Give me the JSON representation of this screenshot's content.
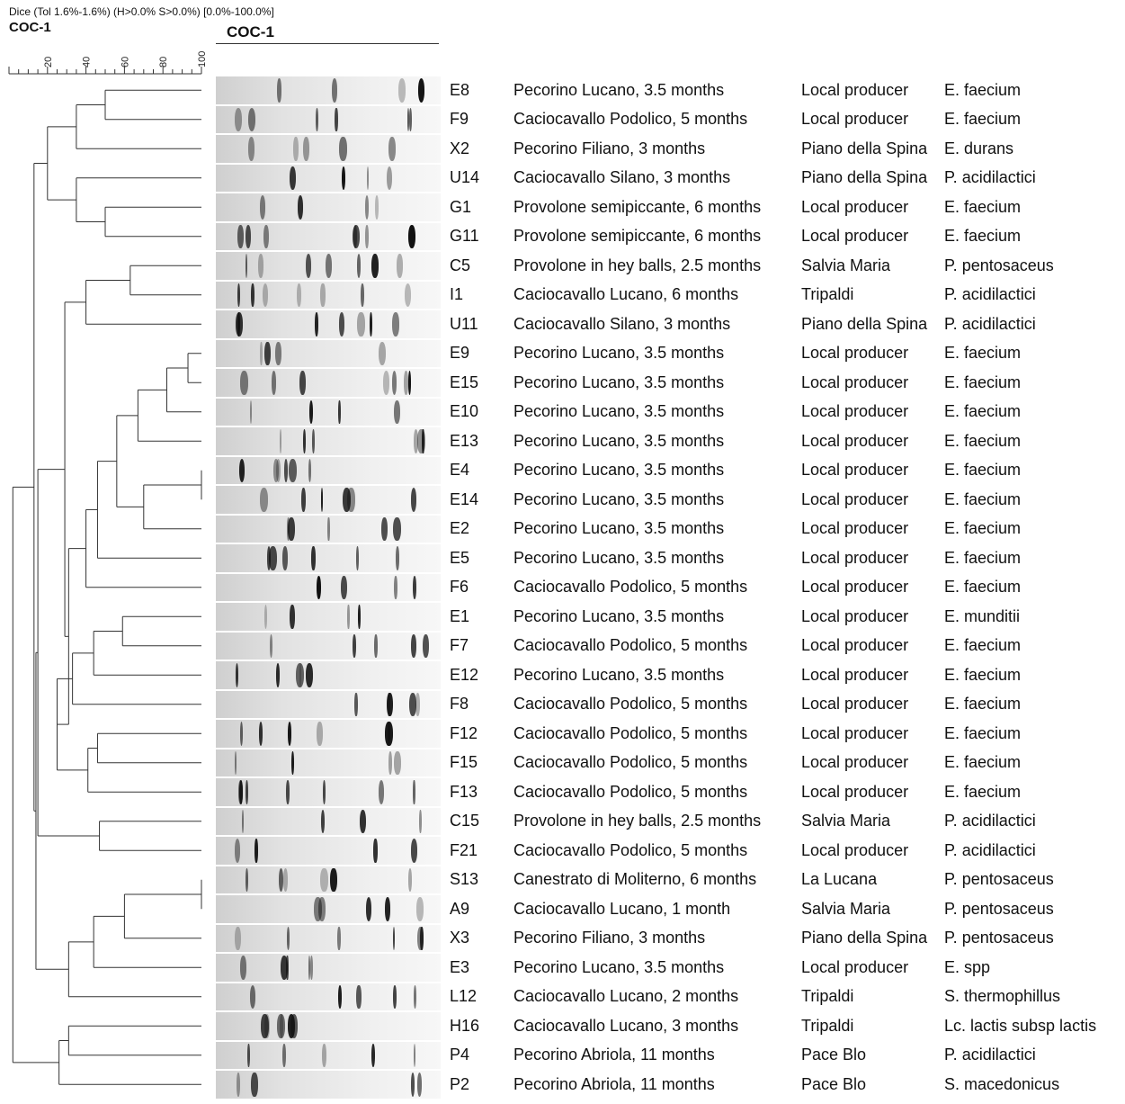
{
  "header": {
    "params": "Dice (Tol 1.6%-1.6%) (H>0.0% S>0.0%) [0.0%-100.0%]",
    "title": "COC-1",
    "gel_title": "COC-1"
  },
  "scale": {
    "min": 0,
    "max": 100,
    "ticks": [
      "20",
      "40",
      "60",
      "80",
      "100"
    ]
  },
  "isolates": [
    {
      "code": "E8",
      "cheese": "Pecorino Lucano, 3.5 months",
      "producer": "Local producer",
      "species": "E. faecium"
    },
    {
      "code": "F9",
      "cheese": "Caciocavallo Podolico, 5 months",
      "producer": "Local producer",
      "species": "E. faecium"
    },
    {
      "code": "X2",
      "cheese": "Pecorino Filiano, 3 months",
      "producer": "Piano della Spina",
      "species": "E. durans"
    },
    {
      "code": "U14",
      "cheese": "Caciocavallo Silano, 3 months",
      "producer": "Piano della Spina",
      "species": "P. acidilactici"
    },
    {
      "code": "G1",
      "cheese": "Provolone semipiccante, 6 months",
      "producer": "Local producer",
      "species": "E. faecium"
    },
    {
      "code": "G11",
      "cheese": "Provolone semipiccante, 6 months",
      "producer": "Local producer",
      "species": "E. faecium"
    },
    {
      "code": "C5",
      "cheese": "Provolone in hey balls, 2.5 months",
      "producer": "Salvia Maria",
      "species": "P. pentosaceus"
    },
    {
      "code": "I1",
      "cheese": "Caciocavallo Lucano, 6 months",
      "producer": "Tripaldi",
      "species": "P. acidilactici"
    },
    {
      "code": "U11",
      "cheese": "Caciocavallo Silano, 3 months",
      "producer": "Piano della Spina",
      "species": "P. acidilactici"
    },
    {
      "code": "E9",
      "cheese": "Pecorino Lucano, 3.5 months",
      "producer": "Local producer",
      "species": "E. faecium"
    },
    {
      "code": "E15",
      "cheese": "Pecorino Lucano, 3.5 months",
      "producer": "Local producer",
      "species": "E. faecium"
    },
    {
      "code": "E10",
      "cheese": "Pecorino Lucano, 3.5 months",
      "producer": "Local producer",
      "species": "E. faecium"
    },
    {
      "code": "E13",
      "cheese": "Pecorino Lucano, 3.5 months",
      "producer": "Local producer",
      "species": "E. faecium"
    },
    {
      "code": "E4",
      "cheese": "Pecorino Lucano, 3.5 months",
      "producer": "Local producer",
      "species": "E. faecium"
    },
    {
      "code": "E14",
      "cheese": "Pecorino Lucano, 3.5 months",
      "producer": "Local producer",
      "species": "E. faecium"
    },
    {
      "code": "E2",
      "cheese": "Pecorino Lucano, 3.5 months",
      "producer": "Local producer",
      "species": "E. faecium"
    },
    {
      "code": "E5",
      "cheese": "Pecorino Lucano, 3.5 months",
      "producer": "Local producer",
      "species": "E. faecium"
    },
    {
      "code": "F6",
      "cheese": "Caciocavallo Podolico, 5 months",
      "producer": "Local producer",
      "species": "E. faecium"
    },
    {
      "code": "E1",
      "cheese": "Pecorino Lucano, 3.5 months",
      "producer": "Local producer",
      "species": "E. munditii"
    },
    {
      "code": "F7",
      "cheese": "Caciocavallo Podolico, 5 months",
      "producer": "Local producer",
      "species": "E. faecium"
    },
    {
      "code": "E12",
      "cheese": "Pecorino Lucano, 3.5 months",
      "producer": "Local producer",
      "species": "E. faecium"
    },
    {
      "code": "F8",
      "cheese": "Caciocavallo Podolico, 5 months",
      "producer": "Local producer",
      "species": "E. faecium"
    },
    {
      "code": "F12",
      "cheese": "Caciocavallo Podolico, 5 months",
      "producer": "Local producer",
      "species": "E. faecium"
    },
    {
      "code": "F15",
      "cheese": "Caciocavallo Podolico, 5 months",
      "producer": "Local producer",
      "species": "E. faecium"
    },
    {
      "code": "F13",
      "cheese": "Caciocavallo Podolico, 5 months",
      "producer": "Local producer",
      "species": "E. faecium"
    },
    {
      "code": "C15",
      "cheese": "Provolone in hey balls, 2.5 months",
      "producer": "Salvia Maria",
      "species": "P. acidilactici"
    },
    {
      "code": "F21",
      "cheese": "Caciocavallo Podolico, 5 months",
      "producer": "Local producer",
      "species": "P. acidilactici"
    },
    {
      "code": "S13",
      "cheese": "Canestrato di Moliterno, 6 months",
      "producer": "La Lucana",
      "species": "P. pentosaceus"
    },
    {
      "code": "A9",
      "cheese": "Caciocavallo Lucano, 1 month",
      "producer": "Salvia Maria",
      "species": "P. pentosaceus"
    },
    {
      "code": "X3",
      "cheese": "Pecorino Filiano, 3 months",
      "producer": "Piano della Spina",
      "species": "P. pentosaceus"
    },
    {
      "code": "E3",
      "cheese": "Pecorino Lucano, 3.5 months",
      "producer": "Local producer",
      "species": "E. spp"
    },
    {
      "code": "L12",
      "cheese": "Caciocavallo Lucano, 2 months",
      "producer": "Tripaldi",
      "species": "S. thermophillus"
    },
    {
      "code": "H16",
      "cheese": "Caciocavallo Lucano, 3 months",
      "producer": "Tripaldi",
      "species": "Lc. lactis subsp lactis"
    },
    {
      "code": "P4",
      "cheese": "Pecorino Abriola, 11 months",
      "producer": "Pace Blo",
      "species": "P. acidilactici"
    },
    {
      "code": "P2",
      "cheese": "Pecorino Abriola, 11 months",
      "producer": "Pace Blo",
      "species": "S. macedonicus"
    }
  ],
  "dendrogram": {
    "merges": [
      {
        "a": "E8",
        "b": "F9",
        "similarity": 50
      },
      {
        "a": "n0",
        "b": "X2",
        "similarity": 35
      },
      {
        "a": "G1",
        "b": "G11",
        "similarity": 50
      },
      {
        "a": "U14",
        "b": "n2",
        "similarity": 35
      },
      {
        "a": "n1",
        "b": "n3",
        "similarity": 20
      },
      {
        "a": "C5",
        "b": "I1",
        "similarity": 63
      },
      {
        "a": "n5",
        "b": "U11",
        "similarity": 40
      },
      {
        "a": "E9",
        "b": "E15",
        "similarity": 93
      },
      {
        "a": "n7",
        "b": "E10",
        "similarity": 82
      },
      {
        "a": "n8",
        "b": "E13",
        "similarity": 67
      },
      {
        "a": "E4",
        "b": "E14",
        "similarity": 100
      },
      {
        "a": "n10",
        "b": "E2",
        "similarity": 70
      },
      {
        "a": "n9",
        "b": "n11",
        "similarity": 56
      },
      {
        "a": "n12",
        "b": "E5",
        "similarity": 46
      },
      {
        "a": "n13",
        "b": "F6",
        "similarity": 40
      },
      {
        "a": "E1",
        "b": "F7",
        "similarity": 59
      },
      {
        "a": "n15",
        "b": "E12",
        "similarity": 44
      },
      {
        "a": "n16",
        "b": "F8",
        "similarity": 33
      },
      {
        "a": "F12",
        "b": "F15",
        "similarity": 46
      },
      {
        "a": "n18",
        "b": "F13",
        "similarity": 41
      },
      {
        "a": "n17",
        "b": "n19",
        "similarity": 25
      },
      {
        "a": "n14",
        "b": "n20",
        "similarity": 31
      },
      {
        "a": "n6",
        "b": "n21",
        "similarity": 29
      },
      {
        "a": "C15",
        "b": "F21",
        "similarity": 47
      },
      {
        "a": "n22",
        "b": "n23",
        "similarity": 15
      },
      {
        "a": "S13",
        "b": "A9",
        "similarity": 100
      },
      {
        "a": "n25",
        "b": "X3",
        "similarity": 60
      },
      {
        "a": "n26",
        "b": "E3",
        "similarity": 44
      },
      {
        "a": "n27",
        "b": "L12",
        "similarity": 31
      },
      {
        "a": "n24",
        "b": "n28",
        "similarity": 14
      },
      {
        "a": "n4",
        "b": "n29",
        "similarity": 13
      },
      {
        "a": "H16",
        "b": "P4",
        "similarity": 31
      },
      {
        "a": "n31",
        "b": "P2",
        "similarity": 26
      },
      {
        "a": "n30",
        "b": "n32",
        "similarity": 2
      }
    ]
  },
  "colors": {
    "line": "#333333",
    "band": "#111111",
    "lane": "#e6e6e6"
  }
}
